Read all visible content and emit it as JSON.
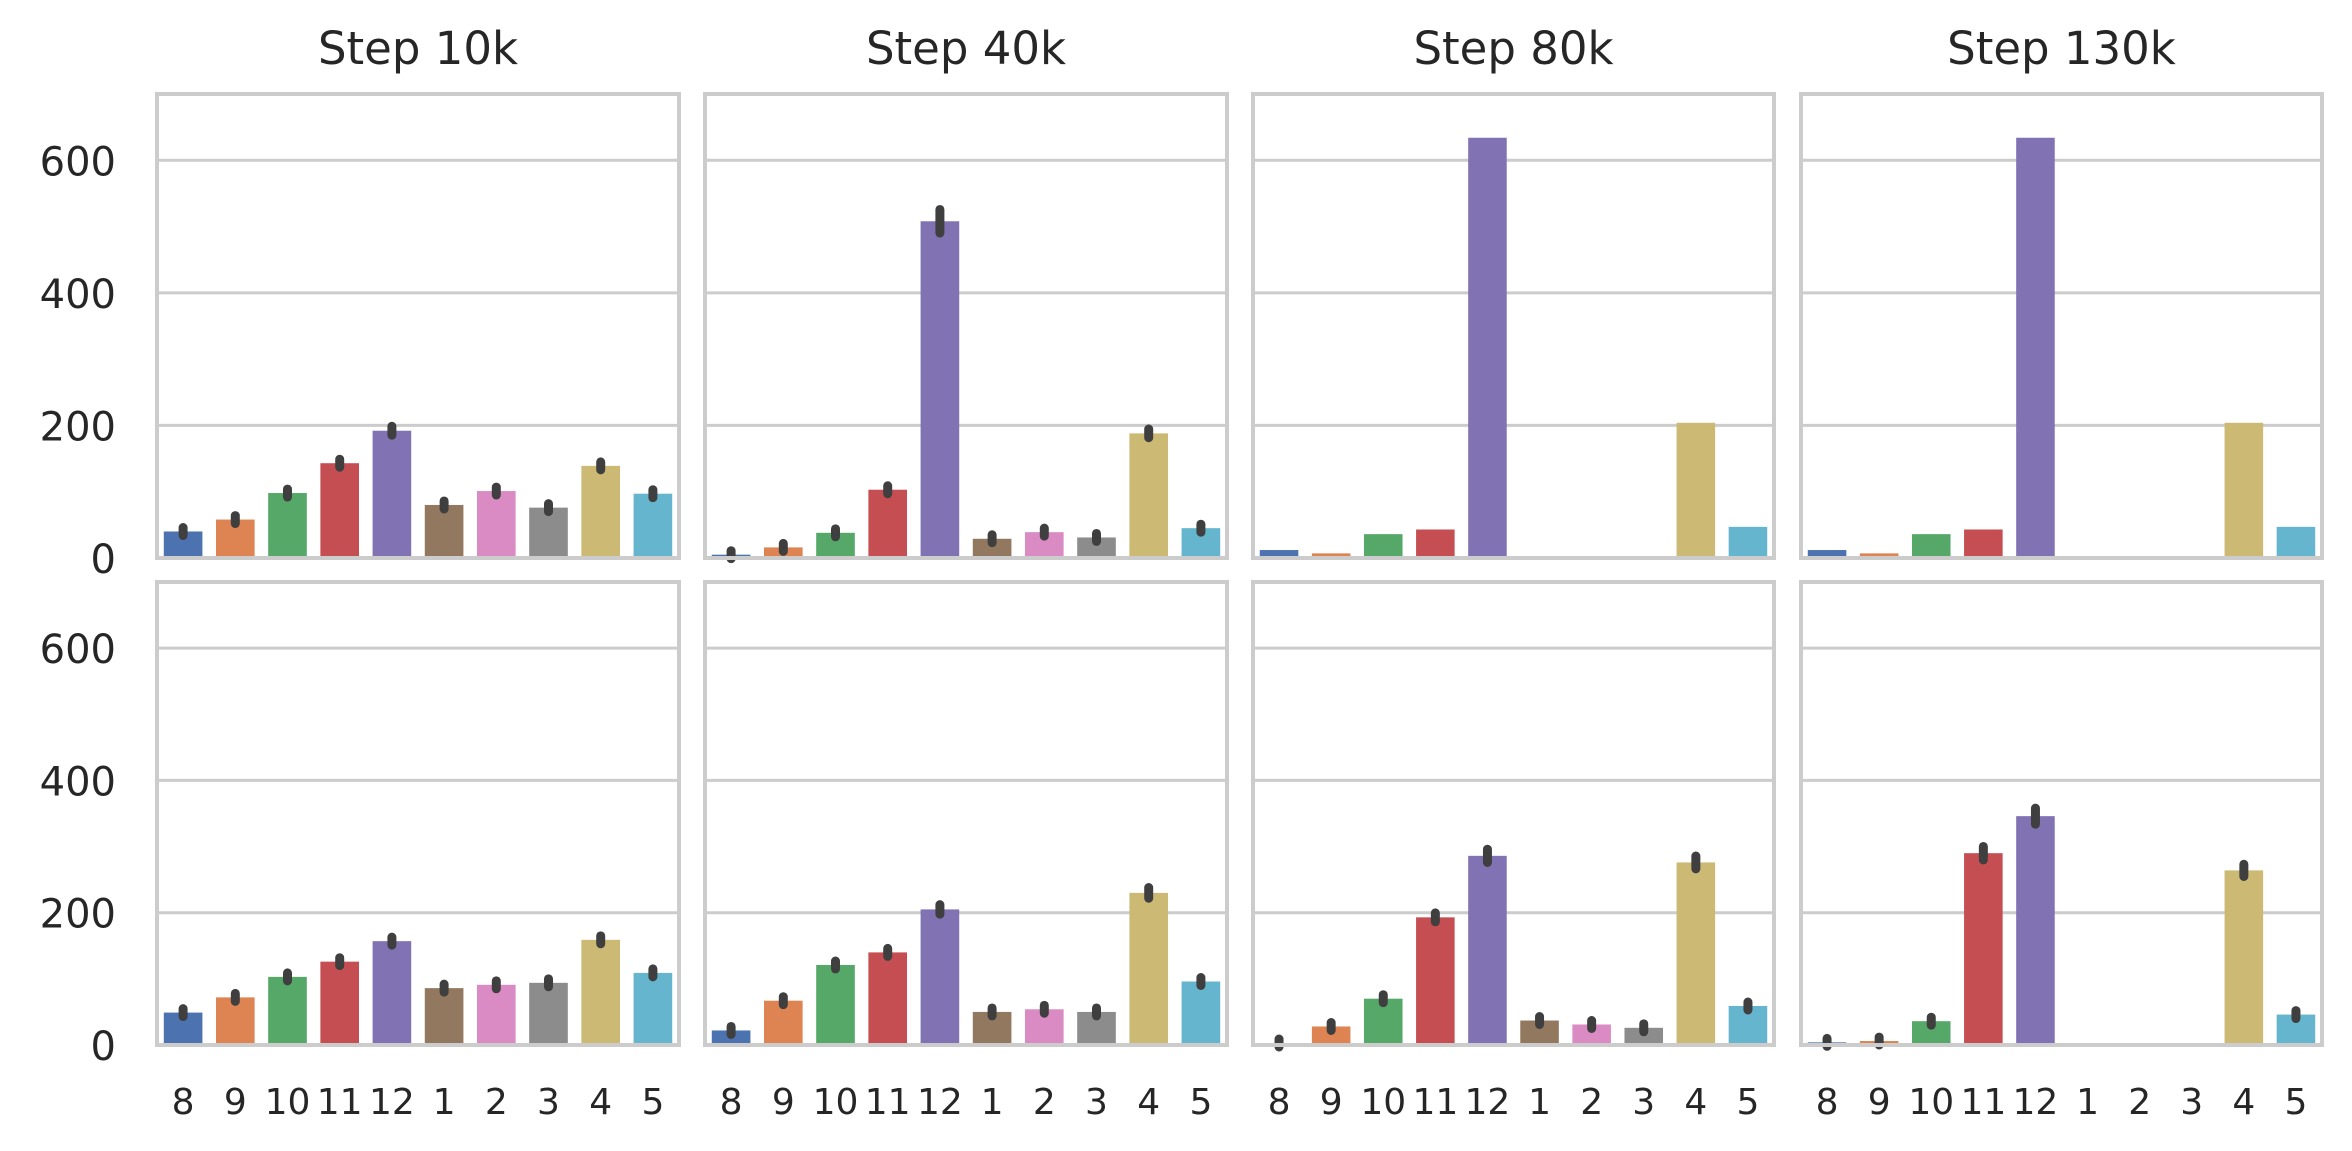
{
  "chart_data": {
    "type": "bar",
    "layout": "2x4 grid of bar charts, shared axes",
    "categories": [
      "8",
      "9",
      "10",
      "11",
      "12",
      "1",
      "2",
      "3",
      "4",
      "5"
    ],
    "column_titles": [
      "Step 10k",
      "Step 40k",
      "Step 80k",
      "Step 130k"
    ],
    "yticks": [
      "0",
      "200",
      "400",
      "600"
    ],
    "ylim": [
      0,
      700
    ],
    "grid": true,
    "colors": [
      "#4c72b0",
      "#dd8452",
      "#55a868",
      "#c44e52",
      "#8172b3",
      "#937860",
      "#da8bc3",
      "#8c8c8c",
      "#ccb974",
      "#64b5cd"
    ],
    "panels": [
      {
        "row": 0,
        "column_title": "Step 10k",
        "values": [
          40,
          58,
          98,
          143,
          192,
          80,
          101,
          76,
          139,
          97
        ],
        "error_bars": true
      },
      {
        "row": 0,
        "column_title": "Step 40k",
        "values": [
          5,
          16,
          38,
          103,
          508,
          29,
          39,
          31,
          188,
          45
        ],
        "error_bars": true
      },
      {
        "row": 0,
        "column_title": "Step 80k",
        "values": [
          12,
          7,
          36,
          43,
          634,
          0,
          0,
          0,
          204,
          47
        ],
        "error_bars": false
      },
      {
        "row": 0,
        "column_title": "Step 130k",
        "values": [
          12,
          7,
          36,
          43,
          634,
          0,
          0,
          0,
          204,
          47
        ],
        "error_bars": false
      },
      {
        "row": 1,
        "column_title": "Step 10k",
        "values": [
          49,
          72,
          103,
          126,
          157,
          86,
          91,
          94,
          159,
          109
        ],
        "error_bars": true
      },
      {
        "row": 1,
        "column_title": "Step 40k",
        "values": [
          22,
          67,
          121,
          140,
          205,
          50,
          54,
          50,
          230,
          96
        ],
        "error_bars": true
      },
      {
        "row": 1,
        "column_title": "Step 80k",
        "values": [
          3,
          28,
          70,
          193,
          286,
          37,
          31,
          26,
          276,
          59
        ],
        "error_bars": true
      },
      {
        "row": 1,
        "column_title": "Step 130k",
        "values": [
          4,
          6,
          36,
          290,
          346,
          0,
          0,
          0,
          264,
          46
        ],
        "error_bars": true
      }
    ]
  }
}
